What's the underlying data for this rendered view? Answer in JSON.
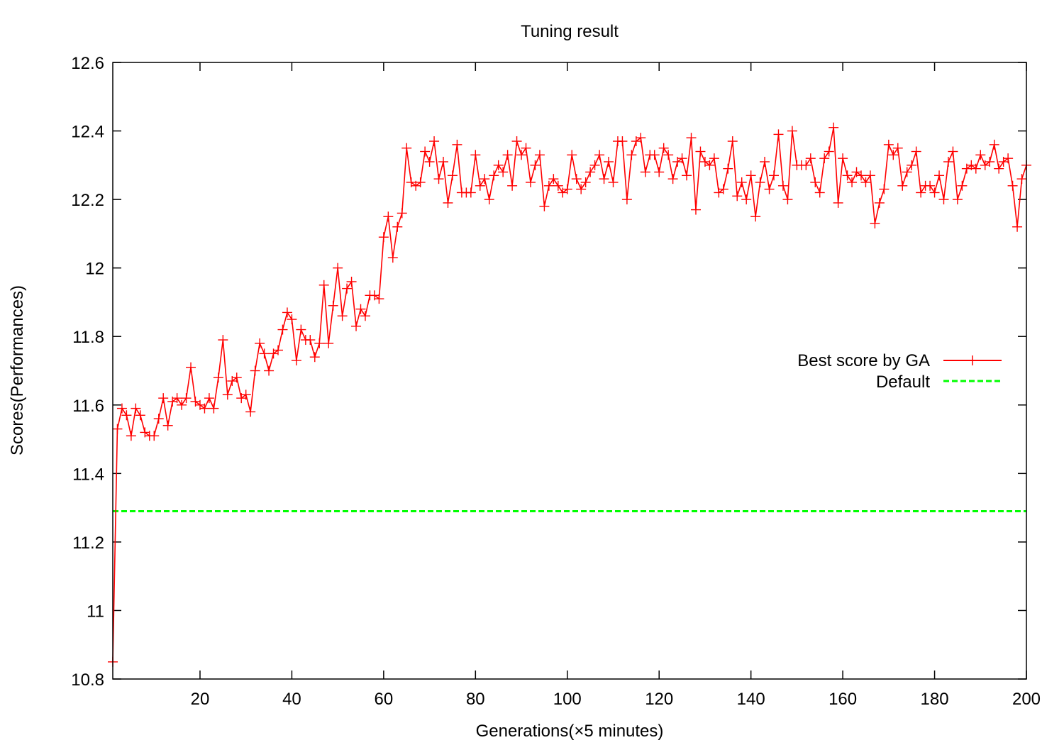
{
  "chart_data": {
    "type": "line",
    "title": "Tuning result",
    "xlabel": "Generations(×5 minutes)",
    "ylabel": "Scores(Performances)",
    "xlim": [
      1,
      200
    ],
    "ylim": [
      10.8,
      12.6
    ],
    "xticks": [
      20,
      40,
      60,
      80,
      100,
      120,
      140,
      160,
      180,
      200
    ],
    "yticks": [
      10.8,
      11,
      11.2,
      11.4,
      11.6,
      11.8,
      12,
      12.2,
      12.4,
      12.6
    ],
    "ytick_labels": [
      "10.8",
      "11",
      "11.2",
      "11.4",
      "11.6",
      "11.8",
      "12",
      "12.2",
      "12.4",
      "12.6"
    ],
    "grid": false,
    "legend_position": "right, middle",
    "series": [
      {
        "name": "Best score by GA",
        "color": "#ff0000",
        "style": "line with plus markers",
        "x_start": 1,
        "x_step": 1,
        "values": [
          10.85,
          11.53,
          11.59,
          11.57,
          11.51,
          11.59,
          11.57,
          11.52,
          11.51,
          11.51,
          11.56,
          11.62,
          11.54,
          11.61,
          11.62,
          11.6,
          11.62,
          11.71,
          11.61,
          11.6,
          11.59,
          11.62,
          11.59,
          11.68,
          11.79,
          11.63,
          11.67,
          11.68,
          11.62,
          11.63,
          11.58,
          11.7,
          11.78,
          11.75,
          11.7,
          11.75,
          11.76,
          11.82,
          11.87,
          11.85,
          11.73,
          11.82,
          11.79,
          11.79,
          11.74,
          11.78,
          11.95,
          11.78,
          11.89,
          12.0,
          11.86,
          11.94,
          11.96,
          11.83,
          11.88,
          11.86,
          11.92,
          11.92,
          11.91,
          12.09,
          12.15,
          12.03,
          12.12,
          12.16,
          12.35,
          12.25,
          12.24,
          12.25,
          12.34,
          12.31,
          12.37,
          12.26,
          12.31,
          12.19,
          12.27,
          12.36,
          12.22,
          12.22,
          12.22,
          12.33,
          12.24,
          12.26,
          12.2,
          12.27,
          12.3,
          12.28,
          12.33,
          12.24,
          12.37,
          12.33,
          12.35,
          12.25,
          12.3,
          12.33,
          12.18,
          12.24,
          12.26,
          12.24,
          12.22,
          12.23,
          12.33,
          12.26,
          12.23,
          12.25,
          12.28,
          12.3,
          12.33,
          12.26,
          12.31,
          12.25,
          12.37,
          12.37,
          12.2,
          12.33,
          12.37,
          12.38,
          12.28,
          12.33,
          12.33,
          12.28,
          12.35,
          12.33,
          12.26,
          12.31,
          12.32,
          12.27,
          12.38,
          12.17,
          12.34,
          12.31,
          12.3,
          12.32,
          12.22,
          12.23,
          12.29,
          12.37,
          12.21,
          12.25,
          12.2,
          12.27,
          12.15,
          12.25,
          12.31,
          12.23,
          12.27,
          12.39,
          12.24,
          12.2,
          12.4,
          12.3,
          12.3,
          12.3,
          12.32,
          12.25,
          12.22,
          12.32,
          12.34,
          12.41,
          12.19,
          12.32,
          12.27,
          12.25,
          12.28,
          12.27,
          12.25,
          12.27,
          12.13,
          12.19,
          12.23,
          12.36,
          12.33,
          12.35,
          12.24,
          12.28,
          12.3,
          12.34,
          12.22,
          12.24,
          12.24,
          12.22,
          12.27,
          12.2,
          12.31,
          12.34,
          12.2,
          12.24,
          12.29,
          12.3,
          12.29,
          12.33,
          12.3,
          12.31,
          12.36,
          12.29,
          12.31,
          12.32,
          12.24,
          12.12,
          12.26,
          12.3
        ]
      },
      {
        "name": "Default",
        "color": "#00ff00",
        "style": "dashed line",
        "x": [
          1,
          200
        ],
        "values": [
          11.29,
          11.29
        ]
      }
    ]
  }
}
